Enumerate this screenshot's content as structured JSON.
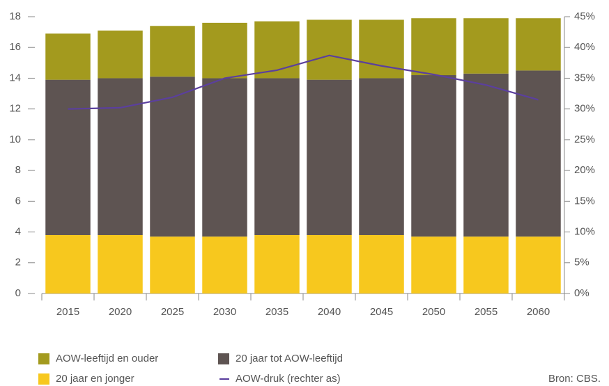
{
  "chart_data": {
    "type": "bar",
    "stacked": true,
    "categories": [
      "2015",
      "2020",
      "2025",
      "2030",
      "2035",
      "2040",
      "2045",
      "2050",
      "2055",
      "2060"
    ],
    "series": [
      {
        "name": "20 jaar en jonger",
        "color": "#f7c81e",
        "values": [
          3.8,
          3.8,
          3.7,
          3.7,
          3.8,
          3.8,
          3.8,
          3.7,
          3.7,
          3.7
        ]
      },
      {
        "name": "20 jaar tot AOW-leeftijd",
        "color": "#5e5452",
        "values": [
          10.1,
          10.2,
          10.4,
          10.3,
          10.2,
          10.1,
          10.2,
          10.5,
          10.6,
          10.8
        ]
      },
      {
        "name": "AOW-leeftijd en ouder",
        "color": "#a39a1e",
        "values": [
          3.0,
          3.1,
          3.3,
          3.6,
          3.7,
          3.9,
          3.8,
          3.7,
          3.6,
          3.4
        ]
      },
      {
        "name": "AOW-druk (rechter as)",
        "color": "#5b3f9e",
        "type": "line",
        "axis": "y2",
        "values": [
          30,
          30.2,
          31.9,
          35,
          36.3,
          38.7,
          37,
          35.6,
          33.9,
          31.5
        ]
      }
    ],
    "ylim": [
      0,
      18
    ],
    "yticks": [
      0,
      2,
      4,
      6,
      8,
      10,
      12,
      14,
      16,
      18
    ],
    "y2lim": [
      0,
      45
    ],
    "y2ticks": [
      {
        "value": 0,
        "label": "0%"
      },
      {
        "value": 5,
        "label": "5%"
      },
      {
        "value": 10,
        "label": "10%"
      },
      {
        "value": 15,
        "label": "15%"
      },
      {
        "value": 20,
        "label": "20%"
      },
      {
        "value": 25,
        "label": "25%"
      },
      {
        "value": 30,
        "label": "30%"
      },
      {
        "value": 35,
        "label": "35%"
      },
      {
        "value": 40,
        "label": "40%"
      },
      {
        "value": 45,
        "label": "45%"
      }
    ],
    "grid": false,
    "source": "Bron: CBS."
  }
}
